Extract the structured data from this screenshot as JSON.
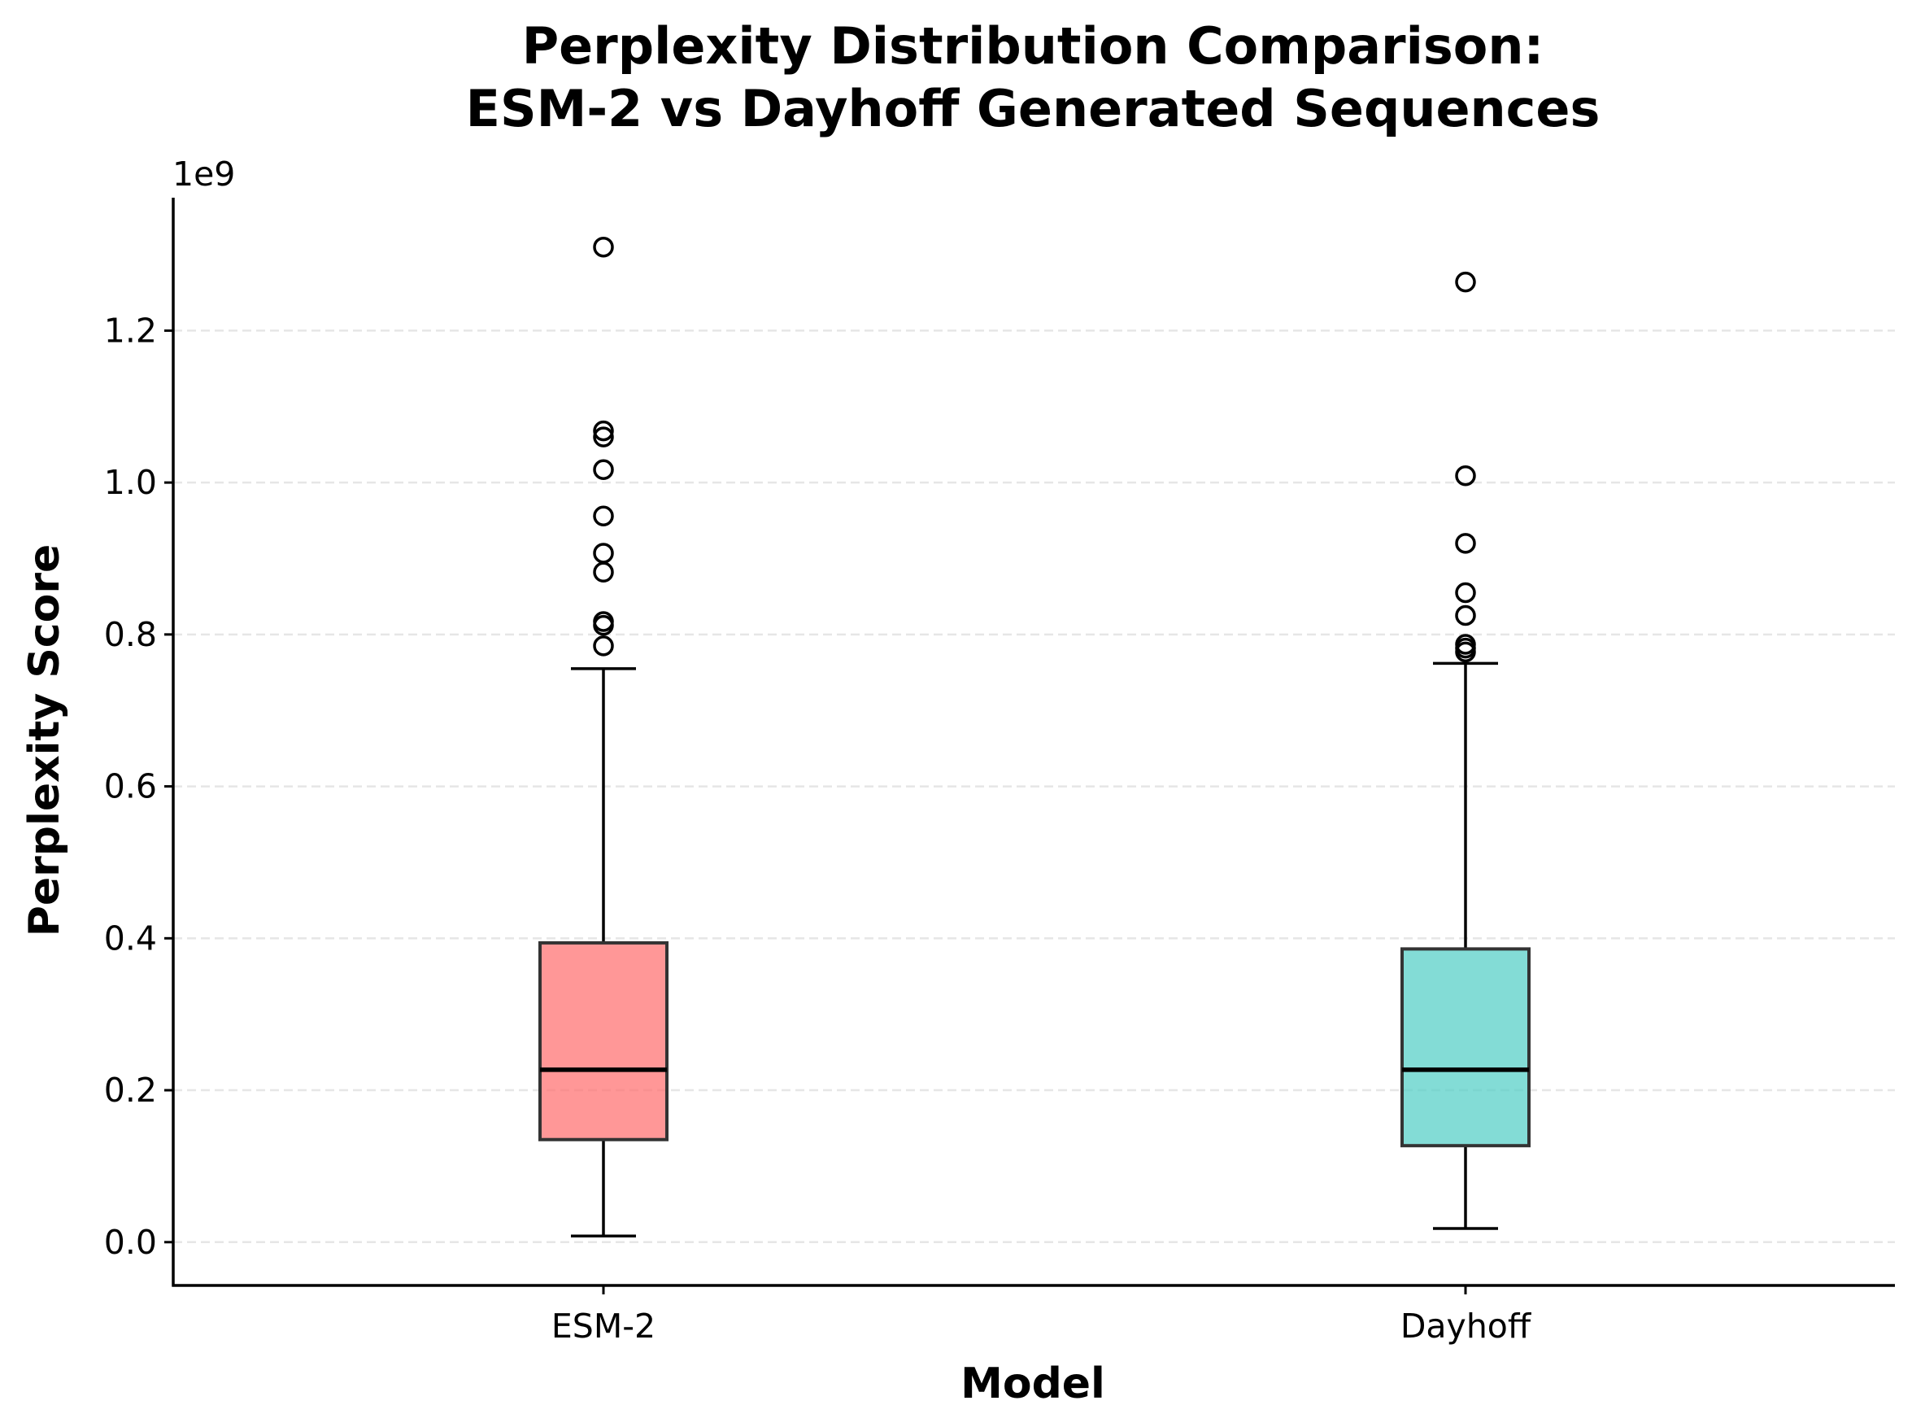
{
  "chart_data": {
    "type": "box",
    "title_lines": [
      "Perplexity Distribution Comparison:",
      "ESM-2 vs Dayhoff Generated Sequences"
    ],
    "xlabel": "Model",
    "ylabel": "Perplexity Score",
    "y_offset_label": "1e9",
    "ylim": [
      -0.057,
      1.375
    ],
    "y_ticks": [
      0.0,
      0.2,
      0.4,
      0.6,
      0.8,
      1.0,
      1.2
    ],
    "y_tick_labels": [
      "0.0",
      "0.2",
      "0.4",
      "0.6",
      "0.8",
      "1.0",
      "1.2"
    ],
    "y_scale": "linear (values x 1e9)",
    "grid": "horizontal dashed",
    "categories": [
      "ESM-2",
      "Dayhoff"
    ],
    "series": [
      {
        "category": "ESM-2",
        "color": "#FF6B6B",
        "whisker_low": 0.008,
        "q1": 0.135,
        "median": 0.227,
        "q3": 0.394,
        "whisker_high": 0.755,
        "outliers": [
          1.31,
          1.068,
          1.06,
          1.017,
          0.956,
          0.907,
          0.882,
          0.817,
          0.812,
          0.785
        ]
      },
      {
        "category": "Dayhoff",
        "color": "#4ECDC4",
        "whisker_low": 0.018,
        "q1": 0.127,
        "median": 0.227,
        "q3": 0.386,
        "whisker_high": 0.762,
        "outliers": [
          1.264,
          1.009,
          0.92,
          0.855,
          0.825,
          0.787,
          0.782,
          0.777
        ]
      }
    ]
  }
}
